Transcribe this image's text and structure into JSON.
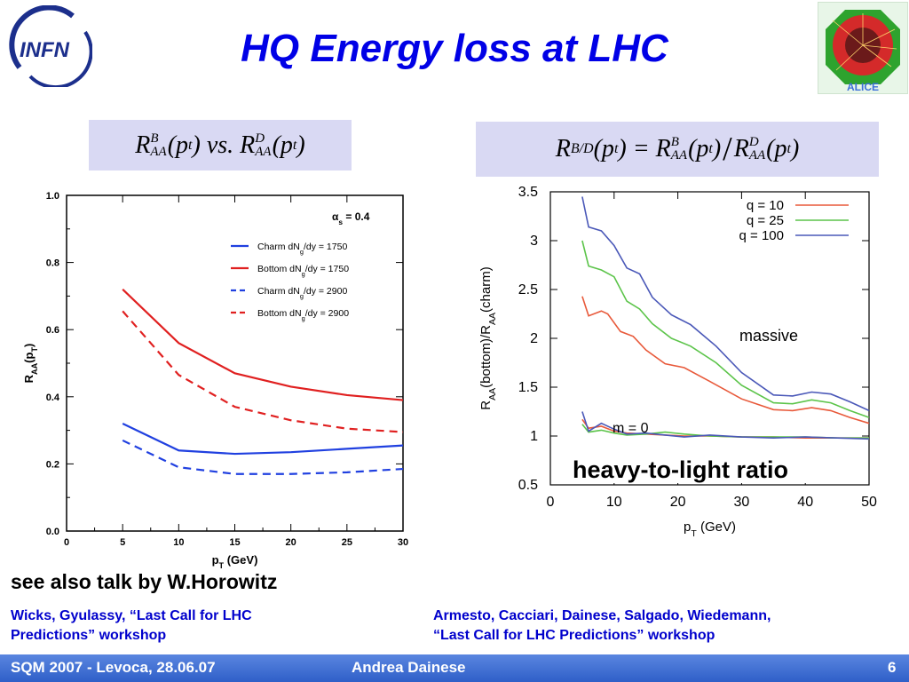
{
  "slide": {
    "title": "HQ Energy loss at LHC",
    "see_also": "see also talk by W.Horowitz",
    "left_reference": [
      "Wicks, Gyulassy, “Last Call for LHC",
      "Predictions” workshop"
    ],
    "right_reference": [
      "Armesto, Cacciari, Dainese, Salgado, Wiedemann,",
      "“Last Call for LHC Predictions” workshop"
    ],
    "footer": {
      "left": "SQM 2007 - Levoca, 28.06.07",
      "center": "Andrea Dainese",
      "page": "6"
    },
    "logos": {
      "left": "INFN",
      "right": "ALICE"
    },
    "formula_left": {
      "R": "R",
      "sup1": "B",
      "sub1": "AA",
      "arg1": "(p",
      "argsub1": "t",
      "close1": ")",
      "vs": " vs. ",
      "sup2": "D",
      "sub2": "AA",
      "arg2": "(p",
      "argsub2": "t",
      "close2": ")"
    },
    "formula_right": {
      "R": "R",
      "sub0": "B/D",
      "arg0": "(p",
      "argsub0": "t",
      "close0": ")",
      "eq": " = ",
      "sup1": "B",
      "sub1": "AA",
      "arg1": "(p",
      "argsub1": "t",
      "close1": ")",
      "slash": "/",
      "sup2": "D",
      "sub2": "AA",
      "arg2": "(p",
      "argsub2": "t",
      "close2": ")"
    },
    "colors": {
      "title": "#0000e6",
      "reference": "#0000cc",
      "formula_bg": "#d9d9f3",
      "footer": "#3a6bd6"
    }
  },
  "chart_data": [
    {
      "type": "line",
      "xlabel": "p_T (GeV)",
      "ylabel": "R_AA(p_T)",
      "xlim": [
        0,
        30
      ],
      "ylim": [
        0,
        1.0
      ],
      "xticks": [
        "0",
        "5",
        "10",
        "15",
        "20",
        "25",
        "30"
      ],
      "yticks": [
        "0.0",
        "0.2",
        "0.4",
        "0.6",
        "0.8",
        "1.0"
      ],
      "annotation": "α_s = 0.4",
      "legend_position": "top-right",
      "series": [
        {
          "name": "Charm dN_g/dy = 1750",
          "color": "#2040e0",
          "dash": "solid",
          "x": [
            5,
            10,
            15,
            20,
            25,
            30
          ],
          "y": [
            0.32,
            0.24,
            0.23,
            0.235,
            0.245,
            0.255
          ]
        },
        {
          "name": "Bottom dN_g/dy = 1750",
          "color": "#e02020",
          "dash": "solid",
          "x": [
            5,
            10,
            15,
            20,
            25,
            30
          ],
          "y": [
            0.72,
            0.56,
            0.47,
            0.43,
            0.405,
            0.39
          ]
        },
        {
          "name": "Charm dN_g/dy = 2900",
          "color": "#2040e0",
          "dash": "dashed",
          "x": [
            5,
            10,
            15,
            20,
            25,
            30
          ],
          "y": [
            0.27,
            0.19,
            0.17,
            0.17,
            0.175,
            0.185
          ]
        },
        {
          "name": "Bottom dN_g/dy = 2900",
          "color": "#e02020",
          "dash": "dashed",
          "x": [
            5,
            10,
            15,
            20,
            25,
            30
          ],
          "y": [
            0.655,
            0.465,
            0.37,
            0.33,
            0.305,
            0.295
          ]
        }
      ]
    },
    {
      "type": "line",
      "xlabel": "p_T (GeV)",
      "ylabel": "R_AA(bottom)/R_AA(charm)",
      "xlim": [
        0,
        50
      ],
      "ylim": [
        0.5,
        3.5
      ],
      "xticks": [
        "0",
        "10",
        "20",
        "30",
        "40",
        "50"
      ],
      "yticks": [
        "0.5",
        "1",
        "1.5",
        "2",
        "2.5",
        "3",
        "3.5"
      ],
      "annotations": [
        "massive",
        "m = 0",
        "heavy-to-light ratio"
      ],
      "legend_position": "top-right",
      "series": [
        {
          "name": "q = 10",
          "color": "#e8593a",
          "x": [
            5,
            6,
            8,
            9,
            11,
            13,
            15,
            18,
            21,
            25,
            30,
            35,
            38,
            41,
            44,
            47,
            50
          ],
          "y": [
            2.43,
            2.23,
            2.28,
            2.25,
            2.07,
            2.02,
            1.88,
            1.74,
            1.7,
            1.56,
            1.38,
            1.27,
            1.26,
            1.29,
            1.26,
            1.19,
            1.13
          ]
        },
        {
          "name": "q = 25",
          "color": "#5cc44a",
          "x": [
            5,
            6,
            8,
            10,
            12,
            14,
            16,
            19,
            22,
            26,
            30,
            35,
            38,
            41,
            44,
            47,
            50
          ],
          "y": [
            3.0,
            2.74,
            2.7,
            2.63,
            2.38,
            2.3,
            2.15,
            2.0,
            1.92,
            1.75,
            1.52,
            1.34,
            1.33,
            1.37,
            1.34,
            1.26,
            1.19
          ]
        },
        {
          "name": "q = 100",
          "color": "#4a58b8",
          "x": [
            5,
            6,
            8,
            10,
            12,
            14,
            16,
            19,
            22,
            26,
            30,
            35,
            38,
            41,
            44,
            47,
            50
          ],
          "y": [
            3.45,
            3.14,
            3.1,
            2.95,
            2.72,
            2.66,
            2.42,
            2.24,
            2.14,
            1.92,
            1.65,
            1.42,
            1.41,
            1.45,
            1.43,
            1.35,
            1.26
          ]
        },
        {
          "name": "m = 0, q = 10",
          "color": "#e8593a",
          "x": [
            5,
            6,
            8,
            10,
            12,
            15,
            18,
            21,
            25,
            30,
            35,
            40,
            45,
            50
          ],
          "y": [
            1.17,
            1.08,
            1.1,
            1.05,
            1.03,
            1.02,
            1.01,
            1.0,
            1.0,
            0.99,
            0.99,
            0.98,
            0.98,
            0.98
          ]
        },
        {
          "name": "m = 0, q = 25",
          "color": "#5cc44a",
          "x": [
            5,
            6,
            8,
            10,
            12,
            15,
            18,
            21,
            25,
            30,
            35,
            40,
            45,
            50
          ],
          "y": [
            1.12,
            1.04,
            1.06,
            1.03,
            1.01,
            1.02,
            1.04,
            1.02,
            1.0,
            0.99,
            0.99,
            0.99,
            0.98,
            0.98
          ]
        },
        {
          "name": "m = 0, q = 100",
          "color": "#4a58b8",
          "x": [
            5,
            6,
            8,
            10,
            12,
            15,
            18,
            21,
            25,
            30,
            35,
            40,
            45,
            50
          ],
          "y": [
            1.25,
            1.05,
            1.13,
            1.07,
            1.02,
            1.03,
            1.01,
            0.99,
            1.01,
            0.99,
            0.98,
            0.99,
            0.98,
            0.97
          ]
        }
      ]
    }
  ]
}
